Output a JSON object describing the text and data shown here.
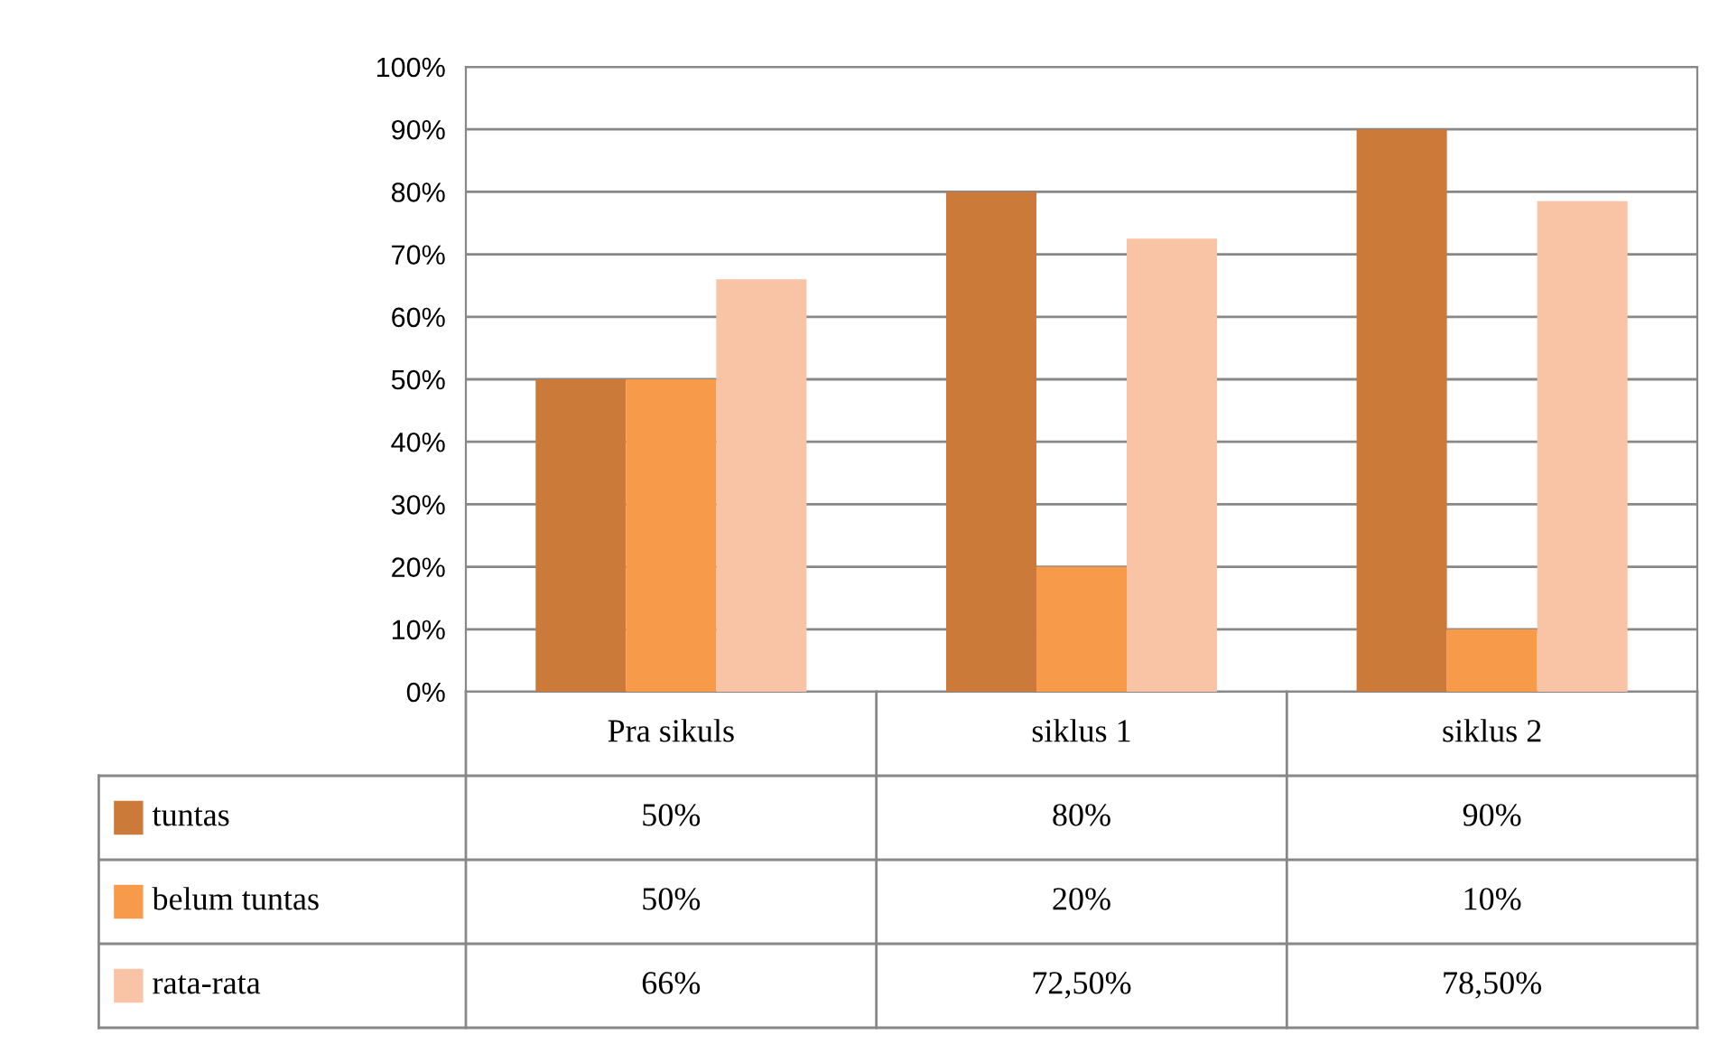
{
  "chart_data": {
    "type": "bar",
    "categories": [
      "Pra sikuls",
      "siklus 1",
      "siklus 2"
    ],
    "series": [
      {
        "name": "tuntas",
        "color": "#cc7a3a",
        "values": [
          50,
          80,
          90
        ],
        "value_labels": [
          "50%",
          "80%",
          "90%"
        ]
      },
      {
        "name": "belum tuntas",
        "color": "#f79a4a",
        "values": [
          50,
          20,
          10
        ],
        "value_labels": [
          "50%",
          "20%",
          "10%"
        ]
      },
      {
        "name": "rata-rata",
        "color": "#f9c3a6",
        "values": [
          66,
          72.5,
          78.5
        ],
        "value_labels": [
          "66%",
          "72,50%",
          "78,50%"
        ]
      }
    ],
    "ylim": [
      0,
      100
    ],
    "yticks": [
      {
        "value": 0,
        "label": "0%"
      },
      {
        "value": 10,
        "label": "10%"
      },
      {
        "value": 20,
        "label": "20%"
      },
      {
        "value": 30,
        "label": "30%"
      },
      {
        "value": 40,
        "label": "40%"
      },
      {
        "value": 50,
        "label": "50%"
      },
      {
        "value": 60,
        "label": "60%"
      },
      {
        "value": 70,
        "label": "70%"
      },
      {
        "value": 80,
        "label": "80%"
      },
      {
        "value": 90,
        "label": "90%"
      },
      {
        "value": 100,
        "label": "100%"
      }
    ],
    "grid": "y",
    "legend": "bottom"
  }
}
